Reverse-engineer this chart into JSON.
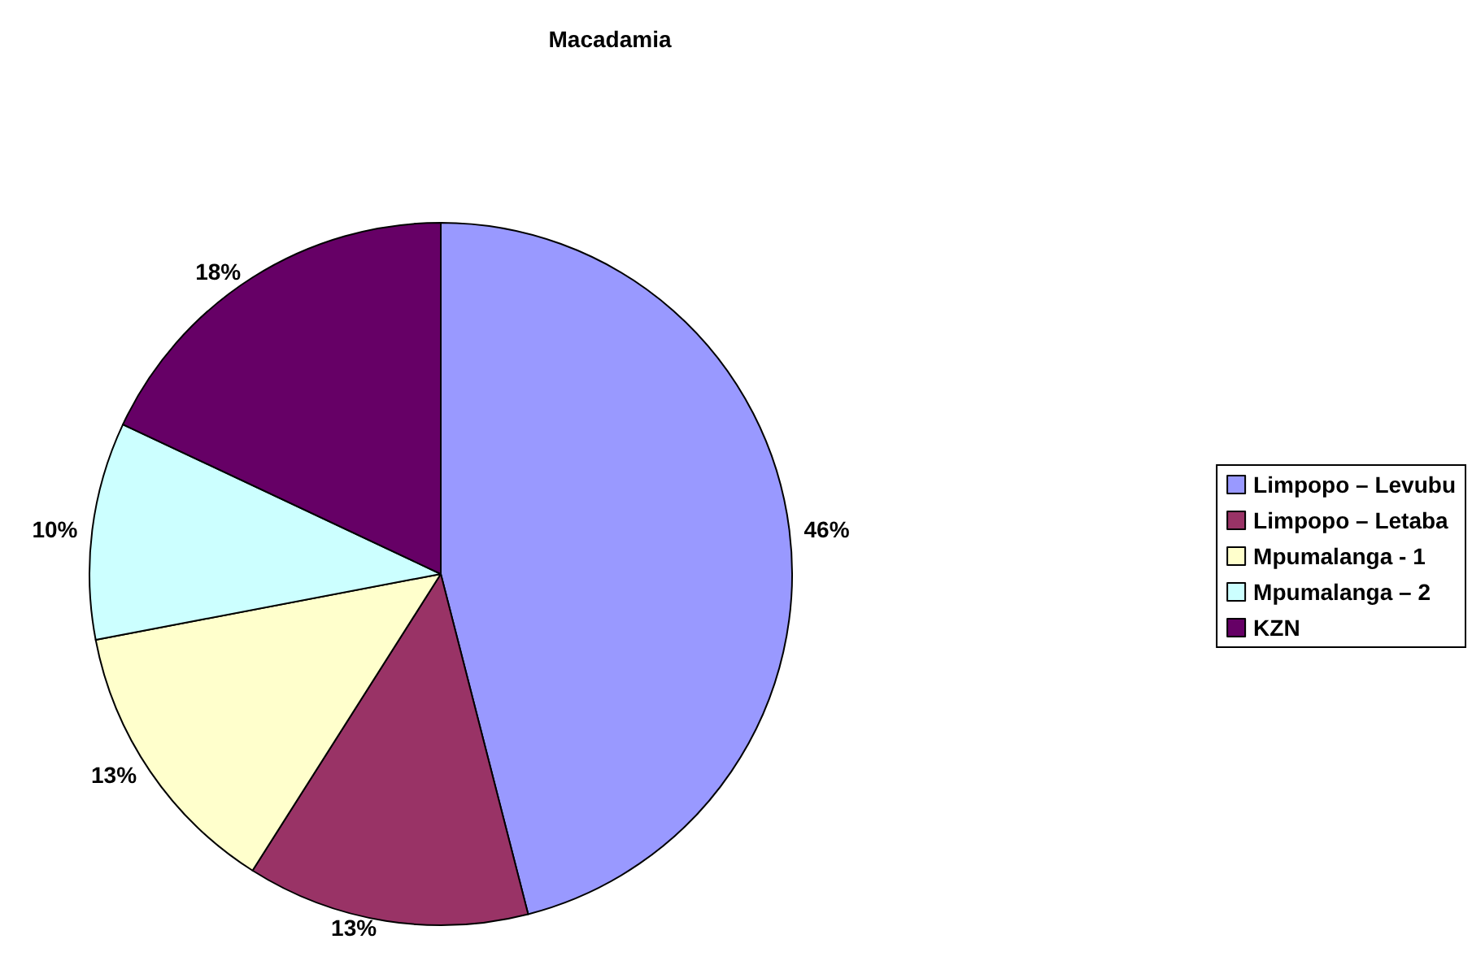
{
  "chart_data": {
    "type": "pie",
    "title": "Macadamia",
    "categories": [
      "Limpopo – Levubu",
      "Limpopo – Letaba",
      "Mpumalanga - 1",
      "Mpumalanga – 2",
      "KZN"
    ],
    "values": [
      46,
      13,
      13,
      10,
      18
    ],
    "colors": [
      "#9999ff",
      "#993366",
      "#ffffcc",
      "#ccffff",
      "#660066"
    ],
    "value_labels": [
      "46%",
      "13%",
      "13%",
      "10%",
      "18%"
    ],
    "legend": "right"
  }
}
